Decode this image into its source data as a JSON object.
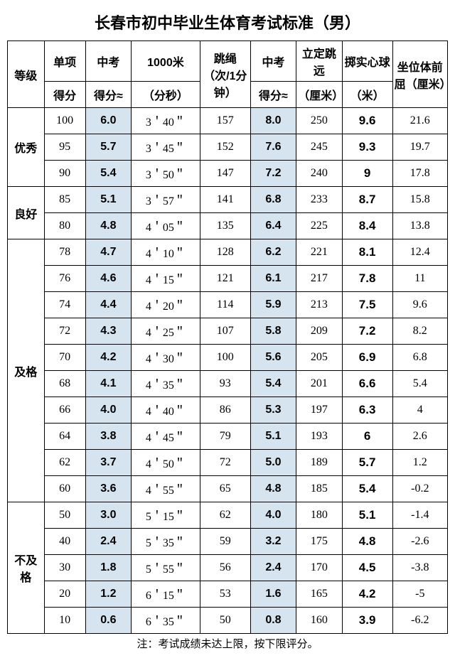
{
  "title": "长春市初中毕业生体育考试标准（男）",
  "note": "注：考试成绩未达上限，按下限评分。",
  "headers": {
    "grade": "等级",
    "item": "单项",
    "score": "得分",
    "zk": "中考",
    "zk_approx": "得分≈",
    "run1000": "1000米",
    "run1000_unit": "（分秒）",
    "rope": "跳绳（次/1分钟）",
    "longjump": "立定跳远",
    "longjump_unit": "（厘米）",
    "ball": "掷实心球",
    "ball_unit": "（米）",
    "sit": "坐位体前屈（厘米）"
  },
  "grades": [
    {
      "name": "优秀",
      "span": 3
    },
    {
      "name": "良好",
      "span": 2
    },
    {
      "name": "及格",
      "span": 10
    },
    {
      "name": "不及格",
      "span": 5
    }
  ],
  "rows": [
    {
      "g": 0,
      "score": "100",
      "zk1": "6.0",
      "run": "3＇40＂",
      "rope": "157",
      "zk2": "8.0",
      "long": "250",
      "ball": "9.6",
      "sit": "21.6"
    },
    {
      "g": 0,
      "score": "95",
      "zk1": "5.7",
      "run": "3＇45＂",
      "rope": "152",
      "zk2": "7.6",
      "long": "245",
      "ball": "9.3",
      "sit": "19.7"
    },
    {
      "g": 0,
      "score": "90",
      "zk1": "5.4",
      "run": "3＇50＂",
      "rope": "147",
      "zk2": "7.2",
      "long": "240",
      "ball": "9",
      "sit": "17.8"
    },
    {
      "g": 1,
      "score": "85",
      "zk1": "5.1",
      "run": "3＇57＂",
      "rope": "141",
      "zk2": "6.8",
      "long": "233",
      "ball": "8.7",
      "sit": "15.8"
    },
    {
      "g": 1,
      "score": "80",
      "zk1": "4.8",
      "run": "4＇05＂",
      "rope": "135",
      "zk2": "6.4",
      "long": "225",
      "ball": "8.4",
      "sit": "13.8"
    },
    {
      "g": 2,
      "score": "78",
      "zk1": "4.7",
      "run": "4＇10＂",
      "rope": "128",
      "zk2": "6.2",
      "long": "221",
      "ball": "8.1",
      "sit": "12.4"
    },
    {
      "g": 2,
      "score": "76",
      "zk1": "4.6",
      "run": "4＇15＂",
      "rope": "121",
      "zk2": "6.1",
      "long": "217",
      "ball": "7.8",
      "sit": "11"
    },
    {
      "g": 2,
      "score": "74",
      "zk1": "4.4",
      "run": "4＇20＂",
      "rope": "114",
      "zk2": "5.9",
      "long": "213",
      "ball": "7.5",
      "sit": "9.6"
    },
    {
      "g": 2,
      "score": "72",
      "zk1": "4.3",
      "run": "4＇25＂",
      "rope": "107",
      "zk2": "5.8",
      "long": "209",
      "ball": "7.2",
      "sit": "8.2"
    },
    {
      "g": 2,
      "score": "70",
      "zk1": "4.2",
      "run": "4＇30＂",
      "rope": "100",
      "zk2": "5.6",
      "long": "205",
      "ball": "6.9",
      "sit": "6.8"
    },
    {
      "g": 2,
      "score": "68",
      "zk1": "4.1",
      "run": "4＇35＂",
      "rope": "93",
      "zk2": "5.4",
      "long": "201",
      "ball": "6.6",
      "sit": "5.4"
    },
    {
      "g": 2,
      "score": "66",
      "zk1": "4.0",
      "run": "4＇40＂",
      "rope": "86",
      "zk2": "5.3",
      "long": "197",
      "ball": "6.3",
      "sit": "4"
    },
    {
      "g": 2,
      "score": "64",
      "zk1": "3.8",
      "run": "4＇45＂",
      "rope": "79",
      "zk2": "5.1",
      "long": "193",
      "ball": "6",
      "sit": "2.6"
    },
    {
      "g": 2,
      "score": "62",
      "zk1": "3.7",
      "run": "4＇50＂",
      "rope": "72",
      "zk2": "5.0",
      "long": "189",
      "ball": "5.7",
      "sit": "1.2"
    },
    {
      "g": 2,
      "score": "60",
      "zk1": "3.6",
      "run": "4＇55＂",
      "rope": "65",
      "zk2": "4.8",
      "long": "185",
      "ball": "5.4",
      "sit": "-0.2"
    },
    {
      "g": 3,
      "score": "50",
      "zk1": "3.0",
      "run": "5＇15＂",
      "rope": "62",
      "zk2": "4.0",
      "long": "180",
      "ball": "5.1",
      "sit": "-1.4"
    },
    {
      "g": 3,
      "score": "40",
      "zk1": "2.4",
      "run": "5＇35＂",
      "rope": "59",
      "zk2": "3.2",
      "long": "175",
      "ball": "4.8",
      "sit": "-2.6"
    },
    {
      "g": 3,
      "score": "30",
      "zk1": "1.8",
      "run": "5＇55＂",
      "rope": "56",
      "zk2": "2.4",
      "long": "170",
      "ball": "4.5",
      "sit": "-3.8"
    },
    {
      "g": 3,
      "score": "20",
      "zk1": "1.2",
      "run": "6＇15＂",
      "rope": "53",
      "zk2": "1.6",
      "long": "165",
      "ball": "4.2",
      "sit": "-5"
    },
    {
      "g": 3,
      "score": "10",
      "zk1": "0.6",
      "run": "6＇35＂",
      "rope": "50",
      "zk2": "0.8",
      "long": "160",
      "ball": "3.9",
      "sit": "-6.2"
    }
  ],
  "colors": {
    "highlight": "#d6e4f0"
  }
}
